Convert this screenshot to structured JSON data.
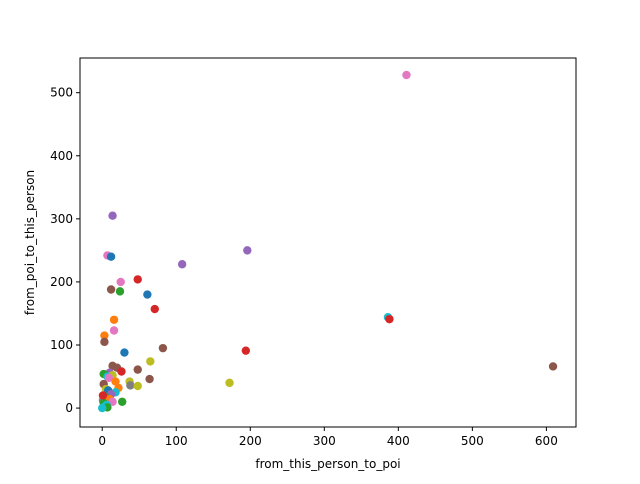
{
  "chart_data": {
    "type": "scatter",
    "title": "",
    "xlabel": "from_this_person_to_poi",
    "ylabel": "from_poi_to_this_person",
    "xlim": [
      -30,
      640
    ],
    "ylim": [
      -30,
      555
    ],
    "xticks": [
      0,
      100,
      200,
      300,
      400,
      500,
      600
    ],
    "yticks": [
      0,
      100,
      200,
      300,
      400,
      500
    ],
    "grid": false,
    "legend": "none",
    "points": [
      {
        "x": 411,
        "y": 528,
        "color": "#e377c2"
      },
      {
        "x": 14,
        "y": 305,
        "color": "#9467bd"
      },
      {
        "x": 196,
        "y": 250,
        "color": "#9467bd"
      },
      {
        "x": 7,
        "y": 242,
        "color": "#e377c2"
      },
      {
        "x": 12,
        "y": 240,
        "color": "#1f77b4"
      },
      {
        "x": 108,
        "y": 228,
        "color": "#9467bd"
      },
      {
        "x": 48,
        "y": 204,
        "color": "#d62728"
      },
      {
        "x": 25,
        "y": 200,
        "color": "#e377c2"
      },
      {
        "x": 12,
        "y": 188,
        "color": "#8c564b"
      },
      {
        "x": 24,
        "y": 185,
        "color": "#2ca02c"
      },
      {
        "x": 61,
        "y": 180,
        "color": "#1f77b4"
      },
      {
        "x": 71,
        "y": 157,
        "color": "#d62728"
      },
      {
        "x": 386,
        "y": 144,
        "color": "#17becf"
      },
      {
        "x": 388,
        "y": 141,
        "color": "#d62728"
      },
      {
        "x": 16,
        "y": 140,
        "color": "#ff7f0e"
      },
      {
        "x": 16,
        "y": 123,
        "color": "#e377c2"
      },
      {
        "x": 3,
        "y": 115,
        "color": "#ff7f0e"
      },
      {
        "x": 3,
        "y": 105,
        "color": "#8c564b"
      },
      {
        "x": 82,
        "y": 95,
        "color": "#8c564b"
      },
      {
        "x": 194,
        "y": 91,
        "color": "#d62728"
      },
      {
        "x": 30,
        "y": 88,
        "color": "#1f77b4"
      },
      {
        "x": 65,
        "y": 74,
        "color": "#bcbd22"
      },
      {
        "x": 14,
        "y": 67,
        "color": "#8c564b"
      },
      {
        "x": 609,
        "y": 66,
        "color": "#8c564b"
      },
      {
        "x": 20,
        "y": 64,
        "color": "#8c564b"
      },
      {
        "x": 48,
        "y": 61,
        "color": "#8c564b"
      },
      {
        "x": 26,
        "y": 58,
        "color": "#d62728"
      },
      {
        "x": 10,
        "y": 56,
        "color": "#9467bd"
      },
      {
        "x": 2,
        "y": 54,
        "color": "#2ca02c"
      },
      {
        "x": 7,
        "y": 50,
        "color": "#17becf"
      },
      {
        "x": 14,
        "y": 52,
        "color": "#bcbd22"
      },
      {
        "x": 9,
        "y": 48,
        "color": "#e377c2"
      },
      {
        "x": 64,
        "y": 46,
        "color": "#8c564b"
      },
      {
        "x": 37,
        "y": 42,
        "color": "#bcbd22"
      },
      {
        "x": 172,
        "y": 40,
        "color": "#bcbd22"
      },
      {
        "x": 18,
        "y": 42,
        "color": "#ff7f0e"
      },
      {
        "x": 38,
        "y": 36,
        "color": "#7f7f7f"
      },
      {
        "x": 48,
        "y": 35,
        "color": "#bcbd22"
      },
      {
        "x": 22,
        "y": 32,
        "color": "#ff7f0e"
      },
      {
        "x": 2,
        "y": 38,
        "color": "#8c564b"
      },
      {
        "x": 5,
        "y": 30,
        "color": "#bcbd22"
      },
      {
        "x": 8,
        "y": 28,
        "color": "#1f77b4"
      },
      {
        "x": 18,
        "y": 25,
        "color": "#17becf"
      },
      {
        "x": 12,
        "y": 22,
        "color": "#9467bd"
      },
      {
        "x": 4,
        "y": 18,
        "color": "#2ca02c"
      },
      {
        "x": 1,
        "y": 12,
        "color": "#7f7f7f"
      },
      {
        "x": 10,
        "y": 14,
        "color": "#ff7f0e"
      },
      {
        "x": 14,
        "y": 10,
        "color": "#e377c2"
      },
      {
        "x": 27,
        "y": 10,
        "color": "#2ca02c"
      },
      {
        "x": 2,
        "y": 8,
        "color": "#2ca02c"
      },
      {
        "x": 6,
        "y": 5,
        "color": "#17becf"
      },
      {
        "x": 3,
        "y": 2,
        "color": "#17becf"
      },
      {
        "x": 7,
        "y": 1,
        "color": "#2ca02c"
      },
      {
        "x": 0,
        "y": 0,
        "color": "#17becf"
      },
      {
        "x": 1,
        "y": 20,
        "color": "#d62728"
      }
    ]
  }
}
